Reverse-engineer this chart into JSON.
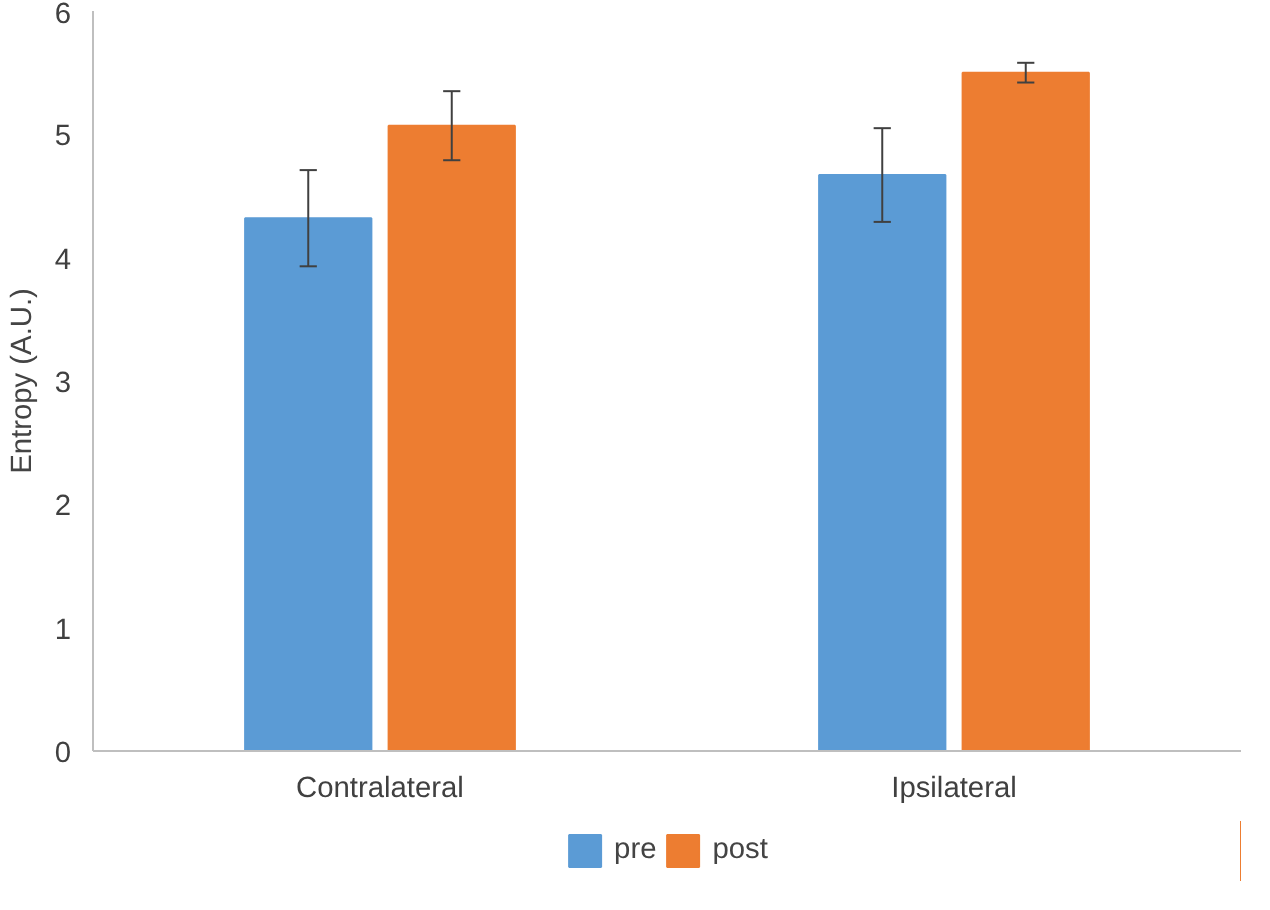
{
  "chart_data": {
    "type": "bar",
    "ylabel": "Entropy (A.U.)",
    "categories": [
      "Contralateral",
      "Ipsilateral"
    ],
    "series": [
      {
        "name": "pre",
        "color": "#5b9bd5",
        "values": [
          4.32,
          4.67
        ],
        "errors": [
          0.39,
          0.38
        ]
      },
      {
        "name": "post",
        "color": "#ed7d31",
        "values": [
          5.07,
          5.5
        ],
        "errors": [
          0.28,
          0.08
        ]
      }
    ],
    "ylim": [
      0,
      6
    ],
    "yticks": [
      0,
      1,
      2,
      3,
      4,
      5,
      6
    ],
    "grid": false,
    "legend": "bottom"
  }
}
